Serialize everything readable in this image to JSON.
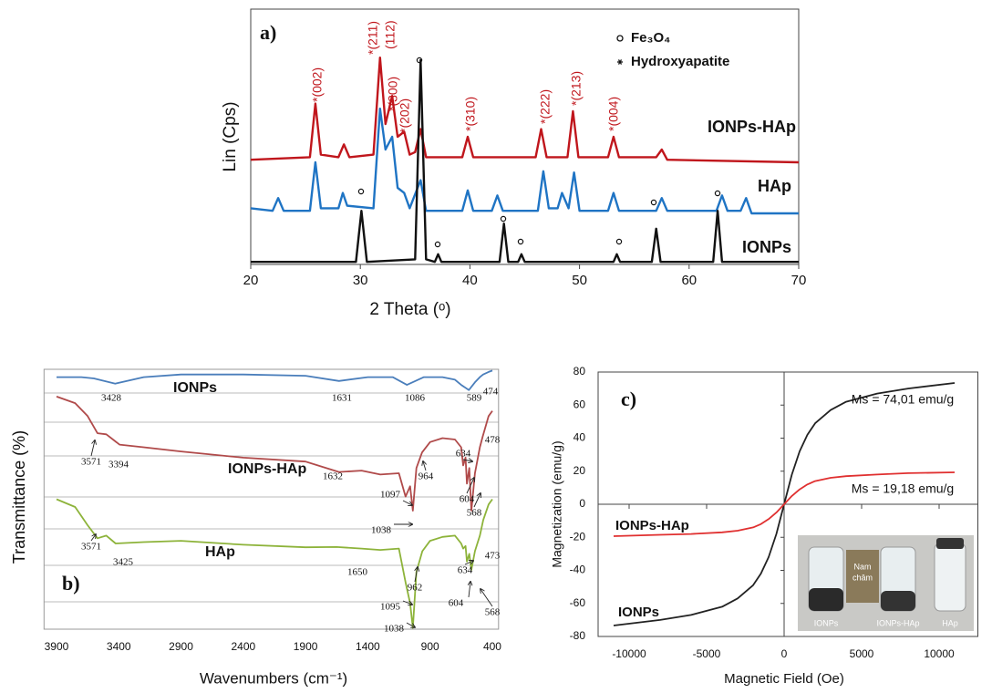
{
  "chart_data": [
    {
      "type": "line",
      "title": "a)",
      "x_label": "2 Theta (ᵒ)",
      "y_label": "Lin (Cps)",
      "xlim": [
        20,
        70
      ],
      "xticks": [
        20,
        30,
        40,
        50,
        60,
        70
      ],
      "ylim": [
        0,
        100
      ],
      "legend": [
        {
          "name": "Fe₃O₄"
        },
        {
          "name": "Hydroxyapatite"
        }
      ],
      "annotations": [
        "*(002)",
        "*(211)",
        "(112)",
        "*(300)",
        "*(202)",
        "*(310)",
        "*(222)",
        "*(213)",
        "*(004)"
      ],
      "series": [
        {
          "name": "IONPs-HAp",
          "color": "#c0161c",
          "x": [
            20,
            25.4,
            25.9,
            26.4,
            28,
            28.5,
            29,
            31.2,
            31.8,
            32.3,
            32.9,
            33.4,
            34.0,
            34.5,
            35.0,
            35.5,
            36.0,
            39.3,
            39.8,
            40.3,
            46.0,
            46.5,
            47.0,
            48.9,
            49.4,
            49.9,
            52.6,
            53.1,
            53.6,
            57,
            57.5,
            58,
            70
          ],
          "values": [
            41,
            42,
            63,
            43,
            42,
            47,
            42,
            43,
            81,
            55,
            66,
            50,
            52,
            43,
            44,
            53,
            42,
            42,
            50,
            42,
            42,
            53,
            42,
            42,
            60,
            42,
            42,
            50,
            42,
            42,
            45,
            41,
            40
          ]
        },
        {
          "name": "HAp",
          "color": "#1f74c4",
          "x": [
            20,
            22,
            22.5,
            23,
            25.4,
            25.9,
            26.4,
            28,
            28.4,
            28.8,
            31.2,
            31.8,
            32.3,
            32.9,
            33.4,
            34.0,
            34.5,
            35.5,
            36,
            39.3,
            39.8,
            40.3,
            42,
            42.5,
            43,
            46.2,
            46.7,
            47.2,
            48,
            48.4,
            49,
            49.5,
            50,
            52.6,
            53.1,
            53.6,
            57,
            57.5,
            58,
            62.5,
            63,
            63.5,
            64.7,
            65.2,
            65.7,
            70
          ],
          "values": [
            22,
            21,
            26,
            21,
            21,
            40,
            22,
            22,
            28,
            23,
            22,
            61,
            45,
            50,
            30,
            28,
            22,
            33,
            21,
            21,
            29,
            21,
            21,
            27,
            21,
            21,
            36.5,
            22,
            22,
            28,
            22,
            36,
            21,
            21,
            28,
            21,
            21,
            26,
            21,
            21,
            27,
            21,
            21,
            26,
            20,
            20
          ]
        },
        {
          "name": "IONPs",
          "color": "#111111",
          "x": [
            20,
            29.6,
            30.1,
            30.6,
            35.0,
            35.5,
            36.0,
            36.8,
            37.1,
            37.4,
            42.7,
            43.1,
            43.5,
            44.4,
            44.7,
            45.0,
            53.1,
            53.4,
            53.7,
            56.6,
            57.0,
            57.4,
            62.2,
            62.6,
            63.0,
            70
          ],
          "values": [
            1,
            1,
            21,
            1,
            2,
            80,
            2,
            1,
            4,
            1,
            1,
            16,
            1,
            1,
            4,
            1,
            1,
            4,
            1,
            1,
            14,
            1,
            1,
            21,
            1,
            1
          ]
        }
      ]
    },
    {
      "type": "line",
      "title": "b)",
      "x_label": "Wavenumbers (cm⁻¹)",
      "y_label": "Transmittance (%)",
      "xlim": [
        4000,
        350
      ],
      "xticks": [
        3900,
        3400,
        2900,
        2400,
        1900,
        1400,
        900,
        400
      ],
      "ylim": [
        0,
        100
      ],
      "annotations": [
        "3428",
        "1631",
        "1086",
        "589",
        "474",
        "3571",
        "3394",
        "1632",
        "1097",
        "964",
        "634",
        "604",
        "568",
        "478",
        "1038",
        "3571",
        "3425",
        "1650",
        "962",
        "634",
        "604",
        "568",
        "473",
        "1095",
        "1038"
      ],
      "series": [
        {
          "name": "IONPs",
          "color": "#4a7ebb",
          "x": [
            3900,
            3700,
            3600,
            3428,
            3200,
            2900,
            2400,
            1900,
            1631,
            1400,
            1200,
            1086,
            950,
            800,
            700,
            650,
            589,
            540,
            500,
            474,
            430,
            400
          ],
          "values": [
            97,
            97,
            96.5,
            94.5,
            97,
            98,
            98,
            97.5,
            95.5,
            97,
            97,
            94,
            97,
            97,
            96,
            94,
            92,
            95,
            97,
            98,
            99,
            99.5
          ]
        },
        {
          "name": "IONPs-HAp",
          "color": "#b04a4a",
          "x": [
            3900,
            3750,
            3650,
            3571,
            3500,
            3394,
            3200,
            2900,
            2400,
            1900,
            1632,
            1450,
            1300,
            1150,
            1097,
            1060,
            1038,
            1010,
            964,
            900,
            800,
            700,
            650,
            634,
            615,
            604,
            585,
            568,
            540,
            500,
            478,
            430,
            400
          ],
          "values": [
            89.5,
            87,
            82,
            75.4,
            75,
            71,
            70,
            68.4,
            66,
            64.5,
            60.5,
            61,
            59.5,
            60,
            51,
            55,
            45.6,
            62,
            68,
            72,
            73.5,
            73,
            70,
            63,
            66,
            56,
            62,
            45.6,
            60,
            70,
            74,
            82,
            84
          ]
        },
        {
          "name": "HAp",
          "color": "#8db33a",
          "x": [
            3900,
            3750,
            3650,
            3571,
            3500,
            3425,
            3200,
            2900,
            2400,
            1900,
            1650,
            1450,
            1300,
            1150,
            1095,
            1060,
            1038,
            1010,
            962,
            900,
            800,
            700,
            650,
            634,
            615,
            604,
            585,
            568,
            540,
            500,
            473,
            430,
            400
          ],
          "values": [
            50,
            47,
            40,
            35,
            36,
            33,
            33.5,
            34,
            32.5,
            31.5,
            31.6,
            31,
            30.5,
            31,
            17.5,
            10,
            0.5,
            22,
            30,
            34,
            35.5,
            36,
            33,
            31,
            32,
            26,
            29,
            22.8,
            30,
            36,
            42,
            48,
            50
          ]
        }
      ]
    },
    {
      "type": "line",
      "title": "c)",
      "x_label": "Magnetic Field (Oe)",
      "y_label": "Magnetization (emu/g)",
      "xlim": [
        -12000,
        12500
      ],
      "xticks": [
        -10000,
        -5000,
        0,
        5000,
        10000
      ],
      "ylim": [
        -80,
        80
      ],
      "yticks": [
        -80,
        -60,
        -40,
        -20,
        0,
        20,
        40,
        60,
        80
      ],
      "annotations": [
        "Ms = 74,01 emu/g",
        "Ms = 19,18 emu/g"
      ],
      "inset_labels": [
        "IONPs",
        "IONPs-HAp",
        "HAp"
      ],
      "inset_magnet": [
        "Nam",
        "châm"
      ],
      "x": [
        -11000,
        -8000,
        -6000,
        -4000,
        -3000,
        -2000,
        -1500,
        -1000,
        -500,
        0,
        500,
        1000,
        1500,
        2000,
        3000,
        4000,
        6000,
        8000,
        11000
      ],
      "series": [
        {
          "name": "IONPs",
          "color": "#222222",
          "values": [
            -73.4,
            -70,
            -67,
            -62,
            -57,
            -49,
            -42,
            -32,
            -18,
            0,
            18,
            32,
            42,
            49,
            57,
            62,
            67,
            70,
            73.4
          ]
        },
        {
          "name": "IONPs-HAp",
          "color": "#e03030",
          "values": [
            -19.3,
            -18.5,
            -18,
            -17,
            -16,
            -14,
            -12,
            -9,
            -5,
            0,
            5,
            9,
            12,
            14,
            16,
            17,
            18,
            18.8,
            19.3
          ]
        }
      ]
    }
  ]
}
